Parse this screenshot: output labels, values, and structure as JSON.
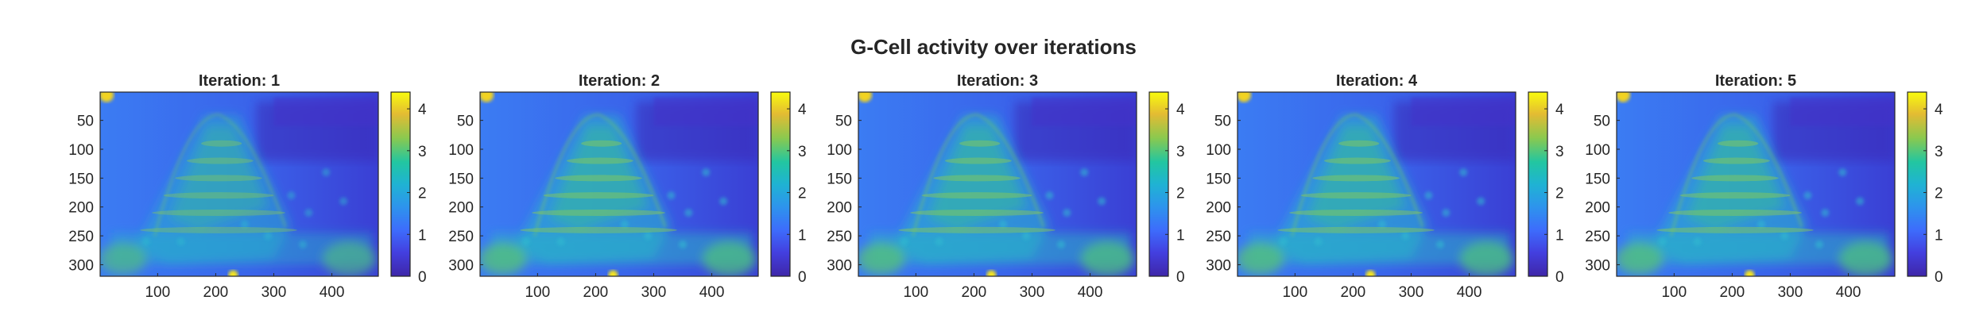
{
  "figure": {
    "title": "G-Cell activity over iterations"
  },
  "chart_data": [
    {
      "type": "heatmap",
      "title": "Iteration: 1",
      "xlabel": "",
      "ylabel": "",
      "xlim": [
        1,
        480
      ],
      "ylim": [
        1,
        320
      ],
      "y_reversed": true,
      "xticks": [
        100,
        200,
        300,
        400
      ],
      "yticks": [
        50,
        100,
        150,
        200,
        250,
        300
      ],
      "colorbar": {
        "ticks": [
          0,
          1,
          2,
          3,
          4
        ],
        "range": [
          0,
          4.4
        ],
        "colormap": "parula"
      },
      "intensity": 0.82
    },
    {
      "type": "heatmap",
      "title": "Iteration: 2",
      "xlabel": "",
      "ylabel": "",
      "xlim": [
        1,
        480
      ],
      "ylim": [
        1,
        320
      ],
      "y_reversed": true,
      "xticks": [
        100,
        200,
        300,
        400
      ],
      "yticks": [
        50,
        100,
        150,
        200,
        250,
        300
      ],
      "colorbar": {
        "ticks": [
          0,
          1,
          2,
          3,
          4
        ],
        "range": [
          0,
          4.4
        ],
        "colormap": "parula"
      },
      "intensity": 1.0
    },
    {
      "type": "heatmap",
      "title": "Iteration: 3",
      "xlabel": "",
      "ylabel": "",
      "xlim": [
        1,
        480
      ],
      "ylim": [
        1,
        320
      ],
      "y_reversed": true,
      "xticks": [
        100,
        200,
        300,
        400
      ],
      "yticks": [
        50,
        100,
        150,
        200,
        250,
        300
      ],
      "colorbar": {
        "ticks": [
          0,
          1,
          2,
          3,
          4
        ],
        "range": [
          0,
          4.4
        ],
        "colormap": "parula"
      },
      "intensity": 1.0
    },
    {
      "type": "heatmap",
      "title": "Iteration: 4",
      "xlabel": "",
      "ylabel": "",
      "xlim": [
        1,
        480
      ],
      "ylim": [
        1,
        320
      ],
      "y_reversed": true,
      "xticks": [
        100,
        200,
        300,
        400
      ],
      "yticks": [
        50,
        100,
        150,
        200,
        250,
        300
      ],
      "colorbar": {
        "ticks": [
          0,
          1,
          2,
          3,
          4
        ],
        "range": [
          0,
          4.4
        ],
        "colormap": "parula"
      },
      "intensity": 1.0
    },
    {
      "type": "heatmap",
      "title": "Iteration: 5",
      "xlabel": "",
      "ylabel": "",
      "xlim": [
        1,
        480
      ],
      "ylim": [
        1,
        320
      ],
      "y_reversed": true,
      "xticks": [
        100,
        200,
        300,
        400
      ],
      "yticks": [
        50,
        100,
        150,
        200,
        250,
        300
      ],
      "colorbar": {
        "ticks": [
          0,
          1,
          2,
          3,
          4
        ],
        "range": [
          0,
          4.4
        ],
        "colormap": "parula"
      },
      "intensity": 1.0
    }
  ],
  "colors": {
    "axis": "#262626",
    "background": "#ffffff",
    "parula_low": "#3e26a8",
    "parula_mid": "#2ca7cf",
    "parula_high": "#f9fb0e"
  }
}
